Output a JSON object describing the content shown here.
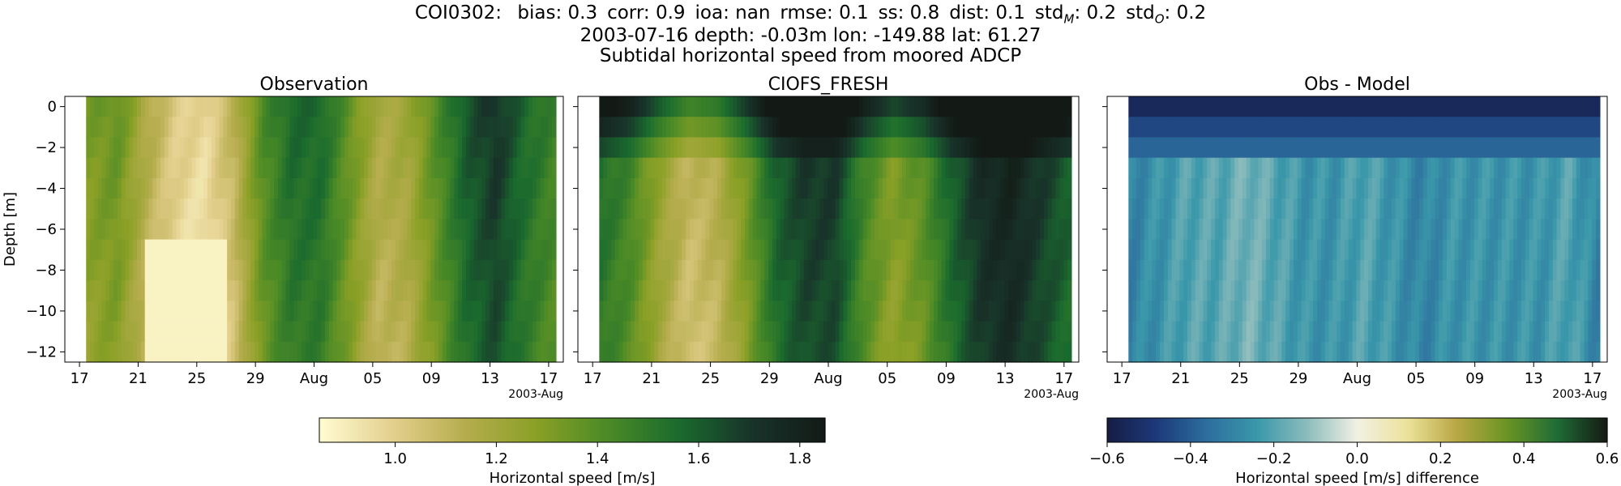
{
  "header": {
    "stats": {
      "prefix": "COI0302:",
      "items": [
        {
          "label": "bias",
          "value": "0.3"
        },
        {
          "label": "corr",
          "value": "0.9"
        },
        {
          "label": "ioa",
          "value": "nan"
        },
        {
          "label": "rmse",
          "value": "0.1"
        },
        {
          "label": "ss",
          "value": "0.8"
        },
        {
          "label": "dist",
          "value": "0.1"
        },
        {
          "label": "std",
          "sub": "M",
          "value": "0.2"
        },
        {
          "label": "std",
          "sub": "O",
          "value": "0.2"
        }
      ]
    },
    "line2": "2003-07-16 depth: -0.03m lon: -149.88 lat: 61.27",
    "line3": "Subtidal horizontal speed from moored ADCP"
  },
  "chart_data": [
    {
      "type": "heatmap",
      "title": "Observation",
      "ylabel": "Depth [m]",
      "xlabel": "",
      "x_tick_labels": [
        "17",
        "21",
        "25",
        "29",
        "Aug",
        "05",
        "09",
        "13",
        "17"
      ],
      "x_offset_label": "2003-Aug",
      "x_range": [
        "2003-07-16",
        "2003-08-19"
      ],
      "data_x_range": [
        "2003-07-17",
        "2003-08-18"
      ],
      "ylim": [
        -12.5,
        0.5
      ],
      "y_ticks": [
        0,
        -2,
        -4,
        -6,
        -8,
        -10,
        -12
      ],
      "y_tick_labels": [
        "0",
        "−2",
        "−4",
        "−6",
        "−8",
        "−10",
        "−12"
      ],
      "depth_bins": 13,
      "colormap": "speed",
      "vrange": [
        0.85,
        1.85
      ],
      "approx_depth_mean_speed_m_s": [
        1.2,
        1.25,
        1.05,
        0.9,
        0.85,
        1.0,
        1.3,
        1.45,
        1.45,
        1.25,
        1.05,
        1.1,
        1.3,
        1.5,
        1.6,
        1.45,
        1.35
      ]
    },
    {
      "type": "heatmap",
      "title": "CIOFS_FRESH",
      "ylabel": "",
      "xlabel": "",
      "x_tick_labels": [
        "17",
        "21",
        "25",
        "29",
        "Aug",
        "05",
        "09",
        "13",
        "17"
      ],
      "x_offset_label": "2003-Aug",
      "x_range": [
        "2003-07-16",
        "2003-08-19"
      ],
      "data_x_range": [
        "2003-07-17",
        "2003-08-18"
      ],
      "ylim": [
        -12.5,
        0.5
      ],
      "depth_bins": 13,
      "colormap": "speed",
      "vrange": [
        0.85,
        1.85
      ],
      "approx_depth_mean_speed_m_s": [
        1.45,
        1.35,
        1.15,
        1.0,
        1.05,
        1.25,
        1.5,
        1.6,
        1.6,
        1.35,
        1.2,
        1.3,
        1.5,
        1.65,
        1.7,
        1.6,
        1.5
      ]
    },
    {
      "type": "heatmap",
      "title": "Obs - Model",
      "ylabel": "",
      "xlabel": "",
      "x_tick_labels": [
        "17",
        "21",
        "25",
        "29",
        "Aug",
        "05",
        "09",
        "13",
        "17"
      ],
      "x_offset_label": "2003-Aug",
      "x_range": [
        "2003-07-16",
        "2003-08-19"
      ],
      "data_x_range": [
        "2003-07-17",
        "2003-08-18"
      ],
      "ylim": [
        -12.5,
        0.5
      ],
      "depth_bins": 13,
      "colormap": "diverging",
      "vrange": [
        -0.6,
        0.6
      ],
      "approx_depth_mean_difference_m_s": [
        -0.3,
        -0.25,
        -0.2,
        -0.2,
        -0.15,
        -0.2,
        -0.25,
        -0.25,
        -0.2,
        -0.25,
        -0.3,
        -0.25,
        -0.25,
        -0.25,
        -0.25,
        -0.2,
        -0.3
      ],
      "near_surface_difference_m_s": -0.55
    }
  ],
  "colorbars": [
    {
      "label": "Horizontal speed [m/s]",
      "range": [
        0.85,
        1.85
      ],
      "ticks": [
        1.0,
        1.2,
        1.4,
        1.6,
        1.8
      ],
      "tick_labels": [
        "1.0",
        "1.2",
        "1.4",
        "1.6",
        "1.8"
      ],
      "colormap": "speed"
    },
    {
      "label": "Horizontal speed [m/s] difference",
      "range": [
        -0.6,
        0.6
      ],
      "ticks": [
        -0.6,
        -0.4,
        -0.2,
        0.0,
        0.2,
        0.4,
        0.6
      ],
      "tick_labels": [
        "−0.6",
        "−0.4",
        "−0.2",
        "0.0",
        "0.2",
        "0.4",
        "0.6"
      ],
      "colormap": "diverging"
    }
  ],
  "colormaps": {
    "speed": [
      "#fffcd2",
      "#e4d08e",
      "#b6ad4e",
      "#8aa026",
      "#4a8a26",
      "#1a6a2e",
      "#18332a",
      "#131a16"
    ],
    "diverging": [
      "#151d44",
      "#1d3a7a",
      "#2d6e9e",
      "#3a98aa",
      "#8cbcbc",
      "#f2f0e4",
      "#ece29a",
      "#b8a644",
      "#6a9424",
      "#1f6c36",
      "#161913"
    ]
  }
}
